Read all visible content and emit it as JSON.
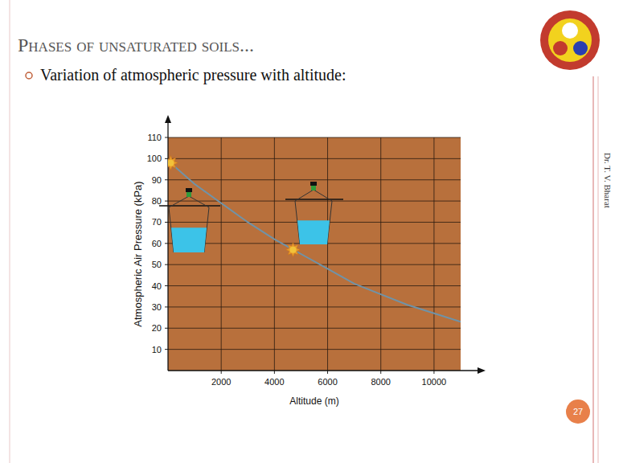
{
  "slide": {
    "title": "Phases of unsaturated soils...",
    "bullet": "Variation of atmospheric pressure with altitude:",
    "author": "Dr. T. V. Bharat",
    "page": "27"
  },
  "chart_data": {
    "type": "line",
    "x_label": "Altitude (m)",
    "y_label": "Atmospheric Air Pressure (kPa)",
    "series": [
      {
        "type": "line",
        "color": "#6f93a8",
        "line_style": "solid",
        "x": [
          0,
          1000,
          2000,
          3000,
          4000,
          5000,
          6000,
          7000,
          8000,
          9000,
          10000,
          11000
        ],
        "values": [
          99,
          88,
          79,
          70,
          62,
          55,
          48,
          41,
          36,
          31,
          27,
          23
        ]
      },
      {
        "type": "scatter",
        "color": "#f2c23a",
        "marker": "star",
        "x": [
          100,
          4700
        ],
        "values": [
          98,
          57
        ]
      }
    ],
    "xlim": [
      0,
      11000
    ],
    "ylim": [
      0,
      110
    ],
    "xticks": [
      2000,
      4000,
      6000,
      8000,
      10000
    ],
    "yticks": [
      10,
      20,
      30,
      40,
      50,
      60,
      70,
      80,
      90,
      100,
      110
    ],
    "grid": true
  }
}
